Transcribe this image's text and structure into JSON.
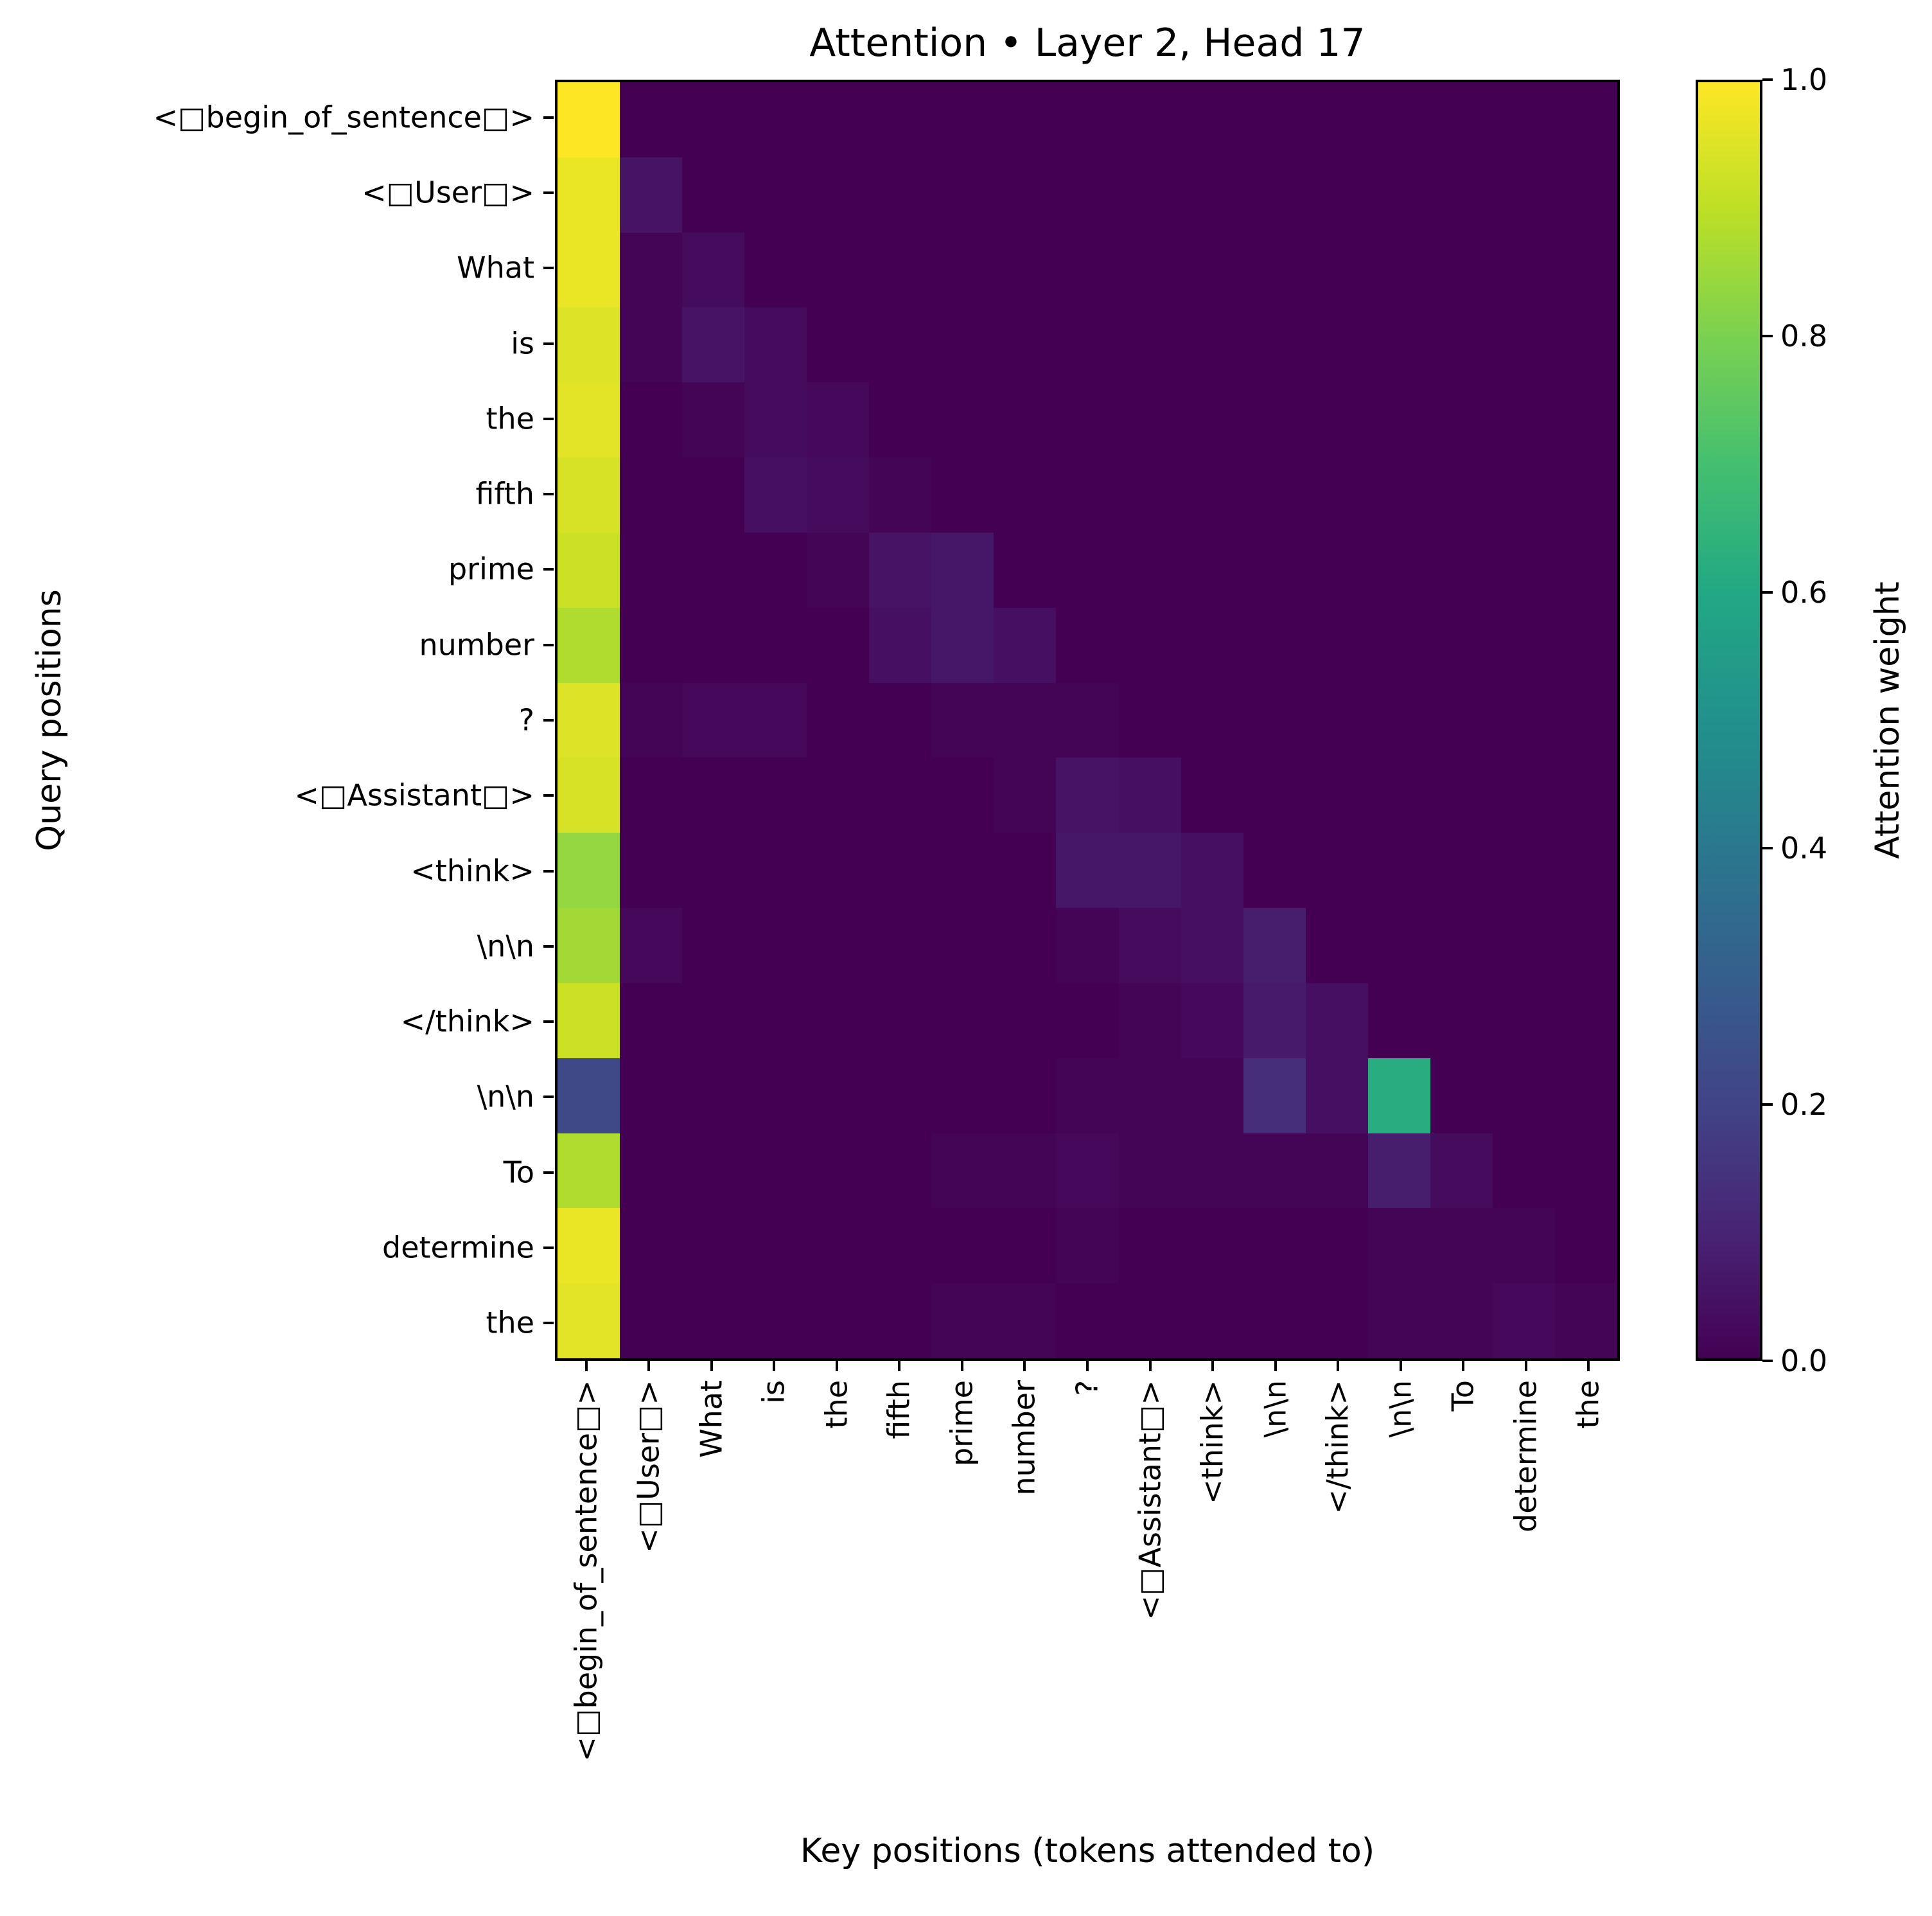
{
  "chart_data": {
    "type": "heatmap",
    "title": "Attention • Layer 2, Head 17",
    "xlabel": "Key positions (tokens attended to)",
    "ylabel": "Query positions",
    "colorbar_label": "Attention weight",
    "colorbar_ticks": [
      "1.0",
      "0.8",
      "0.6",
      "0.4",
      "0.2",
      "0.0"
    ],
    "value_range": [
      0,
      1
    ],
    "colormap": "viridis",
    "viridis_stops": [
      "#440154",
      "#482475",
      "#414487",
      "#355f8d",
      "#2a788e",
      "#21918c",
      "#22a884",
      "#44bf70",
      "#7ad151",
      "#bddf26",
      "#fde725"
    ],
    "grid": "off",
    "legend_position": "right-colorbar",
    "tokens": [
      "<□begin_of_sentence□>",
      "<□User□>",
      "What",
      "is",
      "the",
      "fifth",
      "prime",
      "number",
      "?",
      "<□Assistant□>",
      "<think>",
      "\\n\\n",
      "</think>",
      "\\n\\n",
      "To",
      "determine",
      "the"
    ],
    "matrix": [
      [
        1.0,
        0,
        0,
        0,
        0,
        0,
        0,
        0,
        0,
        0,
        0,
        0,
        0,
        0,
        0,
        0,
        0
      ],
      [
        0.97,
        0.05,
        0,
        0,
        0,
        0,
        0,
        0,
        0,
        0,
        0,
        0,
        0,
        0,
        0,
        0,
        0
      ],
      [
        0.97,
        0.01,
        0.03,
        0,
        0,
        0,
        0,
        0,
        0,
        0,
        0,
        0,
        0,
        0,
        0,
        0,
        0
      ],
      [
        0.95,
        0.01,
        0.05,
        0.03,
        0,
        0,
        0,
        0,
        0,
        0,
        0,
        0,
        0,
        0,
        0,
        0,
        0
      ],
      [
        0.96,
        0,
        0.01,
        0.03,
        0.02,
        0,
        0,
        0,
        0,
        0,
        0,
        0,
        0,
        0,
        0,
        0,
        0
      ],
      [
        0.94,
        0,
        0,
        0.04,
        0.03,
        0.01,
        0,
        0,
        0,
        0,
        0,
        0,
        0,
        0,
        0,
        0,
        0
      ],
      [
        0.92,
        0,
        0,
        0,
        0.01,
        0.05,
        0.06,
        0,
        0,
        0,
        0,
        0,
        0,
        0,
        0,
        0,
        0
      ],
      [
        0.88,
        0,
        0,
        0,
        0,
        0.04,
        0.06,
        0.04,
        0,
        0,
        0,
        0,
        0,
        0,
        0,
        0,
        0
      ],
      [
        0.95,
        0.01,
        0.02,
        0.02,
        0,
        0,
        0.01,
        0.01,
        0.01,
        0,
        0,
        0,
        0,
        0,
        0,
        0,
        0
      ],
      [
        0.94,
        0,
        0,
        0,
        0,
        0,
        0,
        0.01,
        0.05,
        0.04,
        0,
        0,
        0,
        0,
        0,
        0,
        0
      ],
      [
        0.84,
        0,
        0,
        0,
        0,
        0,
        0,
        0,
        0.06,
        0.06,
        0.04,
        0,
        0,
        0,
        0,
        0,
        0
      ],
      [
        0.86,
        0.02,
        0,
        0,
        0,
        0,
        0,
        0,
        0.01,
        0.03,
        0.04,
        0.08,
        0,
        0,
        0,
        0,
        0
      ],
      [
        0.92,
        0,
        0,
        0,
        0,
        0,
        0,
        0,
        0,
        0.01,
        0.02,
        0.07,
        0.04,
        0,
        0,
        0,
        0
      ],
      [
        0.22,
        0,
        0,
        0,
        0,
        0,
        0,
        0,
        0.01,
        0.01,
        0.01,
        0.13,
        0.04,
        0.62,
        0,
        0,
        0
      ],
      [
        0.88,
        0,
        0,
        0,
        0,
        0,
        0.01,
        0.01,
        0.02,
        0.01,
        0.01,
        0.01,
        0.01,
        0.08,
        0.03,
        0,
        0
      ],
      [
        0.97,
        0,
        0,
        0,
        0,
        0,
        0,
        0,
        0.01,
        0,
        0,
        0,
        0,
        0.01,
        0.01,
        0.01,
        0
      ],
      [
        0.96,
        0,
        0,
        0,
        0,
        0,
        0.01,
        0.01,
        0,
        0,
        0,
        0,
        0,
        0.01,
        0.01,
        0.02,
        0.01
      ]
    ]
  }
}
